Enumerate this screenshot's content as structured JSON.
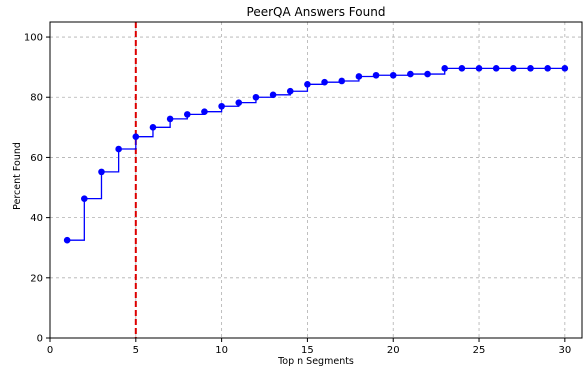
{
  "chart_data": {
    "type": "line",
    "title": "PeerQA Answers Found",
    "xlabel": "Top n Segments",
    "ylabel": "Percent Found",
    "xlim": [
      0,
      31
    ],
    "ylim": [
      0,
      105
    ],
    "xticks": [
      0,
      5,
      10,
      15,
      20,
      25,
      30
    ],
    "yticks": [
      0,
      20,
      40,
      60,
      80,
      100
    ],
    "grid": true,
    "step": "post",
    "series": [
      {
        "color": "#0000ff",
        "x": [
          1,
          2,
          3,
          4,
          5,
          6,
          7,
          8,
          9,
          10,
          11,
          12,
          13,
          14,
          15,
          16,
          17,
          18,
          19,
          20,
          21,
          22,
          23,
          24,
          25,
          26,
          27,
          28,
          29,
          30
        ],
        "y": [
          32.5,
          46.3,
          55.2,
          62.8,
          66.9,
          70.0,
          72.8,
          74.3,
          75.2,
          77.0,
          78.2,
          80.0,
          80.8,
          82.0,
          84.3,
          85.0,
          85.4,
          86.9,
          87.3,
          87.3,
          87.7,
          87.7,
          89.6,
          89.6,
          89.6,
          89.6,
          89.6,
          89.6,
          89.6,
          89.6
        ]
      }
    ],
    "reference_line": {
      "x": 5,
      "color": "#dd0000",
      "style": "dashed"
    }
  }
}
